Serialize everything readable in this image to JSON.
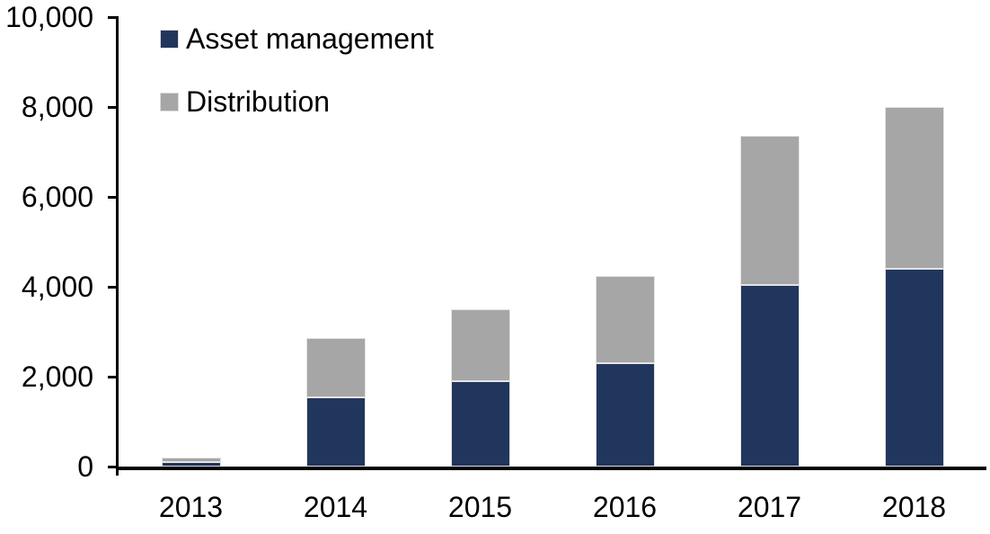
{
  "chart_data": {
    "type": "bar",
    "stacked": true,
    "title": "",
    "xlabel": "",
    "ylabel": "",
    "categories": [
      "2013",
      "2014",
      "2015",
      "2016",
      "2017",
      "2018"
    ],
    "series": [
      {
        "name": "Asset management",
        "color": "#21365d",
        "values": [
          100,
          1550,
          1900,
          2300,
          4050,
          4400
        ]
      },
      {
        "name": "Distribution",
        "color": "#a6a6a6",
        "values": [
          100,
          1320,
          1600,
          1950,
          3320,
          3600
        ]
      }
    ],
    "totals": [
      200,
      2870,
      3500,
      4250,
      7370,
      8000
    ],
    "ylim": [
      0,
      10000
    ],
    "ytick_step": 2000,
    "ytick_labels": [
      "0",
      "2,000",
      "4,000",
      "6,000",
      "8,000",
      "10,000"
    ],
    "grid": false,
    "legend_position": "upper-left-inside",
    "axis_color": "#000000",
    "text_color": "#000000",
    "background_color": "#ffffff",
    "bar_border_color": "#e4e4e4"
  }
}
